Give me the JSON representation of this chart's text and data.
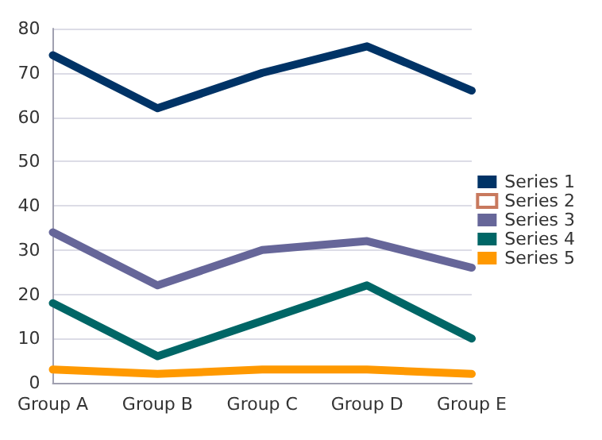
{
  "chart_data": {
    "type": "line",
    "categories": [
      "Group A",
      "Group B",
      "Group C",
      "Group D",
      "Group E"
    ],
    "series": [
      {
        "name": "Series 1",
        "color": "#003366",
        "values": [
          74,
          62,
          70,
          76,
          66
        ]
      },
      {
        "name": "Series 2",
        "color": "#c8795e",
        "values": [
          null,
          null,
          null,
          null,
          null
        ]
      },
      {
        "name": "Series 3",
        "color": "#666699",
        "values": [
          34,
          22,
          30,
          32,
          26
        ]
      },
      {
        "name": "Series 4",
        "color": "#006666",
        "values": [
          18,
          6,
          14,
          22,
          10
        ]
      },
      {
        "name": "Series 5",
        "color": "#ff9900",
        "values": [
          3,
          2,
          3,
          3,
          2
        ]
      }
    ],
    "ylim": [
      0,
      80
    ],
    "yticks": [
      0,
      10,
      20,
      30,
      40,
      50,
      60,
      70,
      80
    ],
    "grid": "y",
    "legend": "right",
    "marker": "none",
    "line_style": "solid"
  }
}
